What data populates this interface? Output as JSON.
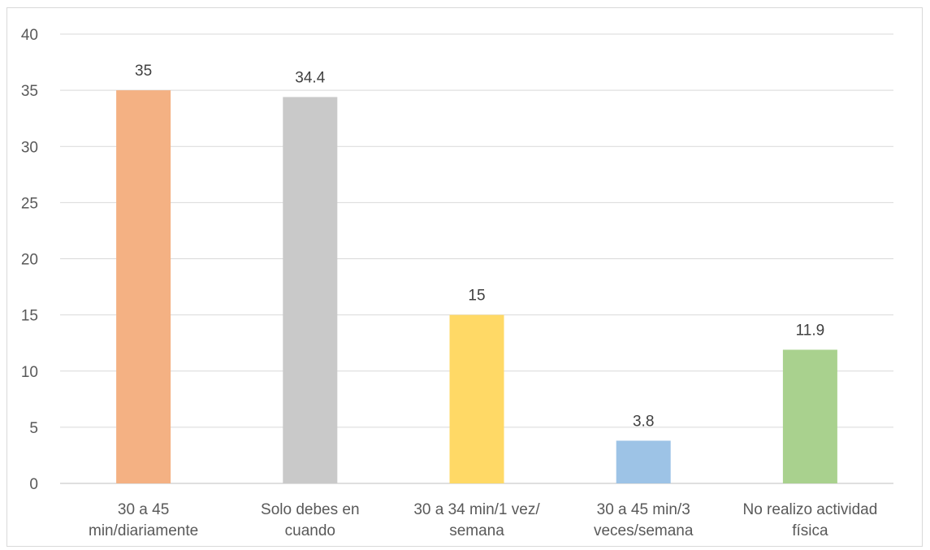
{
  "chart_data": {
    "type": "bar",
    "title": "",
    "xlabel": "",
    "ylabel": "",
    "ylim": [
      0,
      40
    ],
    "y_ticks": [
      0,
      5,
      10,
      15,
      20,
      25,
      30,
      35,
      40
    ],
    "grid": true,
    "legend": "none",
    "categories": [
      [
        "30 a 45",
        "min/diariamente"
      ],
      [
        "Solo debes en",
        "cuando"
      ],
      [
        "30 a 34 min/1 vez/",
        "semana"
      ],
      [
        "30 a 45 min/3",
        "veces/semana"
      ],
      [
        "No realizo actividad",
        "física"
      ]
    ],
    "values": [
      35,
      34.4,
      15,
      3.8,
      11.9
    ],
    "data_labels": [
      "35",
      "34.4",
      "15",
      "3.8",
      "11.9"
    ],
    "colors": [
      "#f4b183",
      "#c9c9c9",
      "#ffd966",
      "#9dc3e6",
      "#a9d18e"
    ],
    "gridline_color": "#d9d9d9",
    "axis_color": "#bfbfbf"
  }
}
